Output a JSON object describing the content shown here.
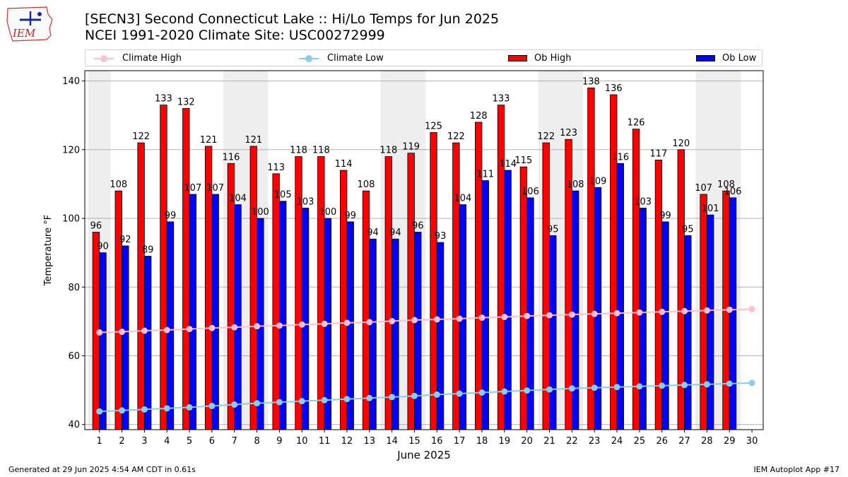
{
  "header": {
    "title_line1": "[SECN3] Second Connecticut Lake :: Hi/Lo Temps for Jun 2025",
    "title_line2": "NCEI 1991-2020 Climate Site: USC00272999"
  },
  "logo": {
    "text": "IEM"
  },
  "footer": {
    "left": "Generated at 29 Jun 2025 4:54 AM CDT in 0.61s",
    "right": "IEM Autoplot App #17"
  },
  "colors": {
    "ob_high": "#ff0000",
    "ob_low": "#0000ff",
    "climate_high": "#ffc0cb",
    "climate_low": "#87ceeb",
    "weekend_shade": "#eeeeee",
    "grid": "#b0b0b0"
  },
  "chart_data": {
    "type": "bar",
    "xlabel": "June 2025",
    "ylabel": "Temperature °F",
    "ylim": [
      38.5,
      143
    ],
    "yticks": [
      40,
      60,
      80,
      100,
      120,
      140
    ],
    "grid": true,
    "legend": "top",
    "categories": [
      "1",
      "2",
      "3",
      "4",
      "5",
      "6",
      "7",
      "8",
      "9",
      "10",
      "11",
      "12",
      "13",
      "14",
      "15",
      "16",
      "17",
      "18",
      "19",
      "20",
      "21",
      "22",
      "23",
      "24",
      "25",
      "26",
      "27",
      "28",
      "29",
      "30"
    ],
    "shaded_days": [
      1,
      7,
      8,
      14,
      15,
      21,
      22,
      28,
      29
    ],
    "series": [
      {
        "name": "Ob High",
        "kind": "bar",
        "values": [
          96,
          108,
          122,
          133,
          132,
          121,
          116,
          121,
          113,
          118,
          118,
          114,
          108,
          118,
          119,
          125,
          122,
          128,
          133,
          115,
          122,
          123,
          138,
          136,
          126,
          117,
          120,
          107,
          108,
          null
        ]
      },
      {
        "name": "Ob Low",
        "kind": "bar",
        "values": [
          90,
          92,
          89,
          99,
          107,
          107,
          104,
          100,
          105,
          103,
          100,
          99,
          94,
          94,
          96,
          93,
          104,
          111,
          114,
          106,
          95,
          108,
          109,
          116,
          103,
          99,
          95,
          101,
          106,
          null
        ]
      },
      {
        "name": "Climate High",
        "kind": "line",
        "values": [
          66.8,
          67.0,
          67.3,
          67.5,
          67.8,
          68.1,
          68.3,
          68.6,
          68.8,
          69.1,
          69.3,
          69.6,
          69.8,
          70.1,
          70.4,
          70.6,
          70.8,
          71.1,
          71.3,
          71.6,
          71.8,
          72.0,
          72.2,
          72.4,
          72.6,
          72.8,
          73.0,
          73.2,
          73.4,
          73.6
        ]
      },
      {
        "name": "Climate Low",
        "kind": "line",
        "values": [
          43.8,
          44.1,
          44.4,
          44.7,
          45.0,
          45.4,
          45.8,
          46.2,
          46.5,
          46.8,
          47.1,
          47.4,
          47.7,
          48.0,
          48.3,
          48.7,
          49.0,
          49.3,
          49.6,
          49.9,
          50.2,
          50.5,
          50.7,
          50.9,
          51.1,
          51.3,
          51.5,
          51.7,
          51.9,
          52.1
        ]
      }
    ]
  }
}
